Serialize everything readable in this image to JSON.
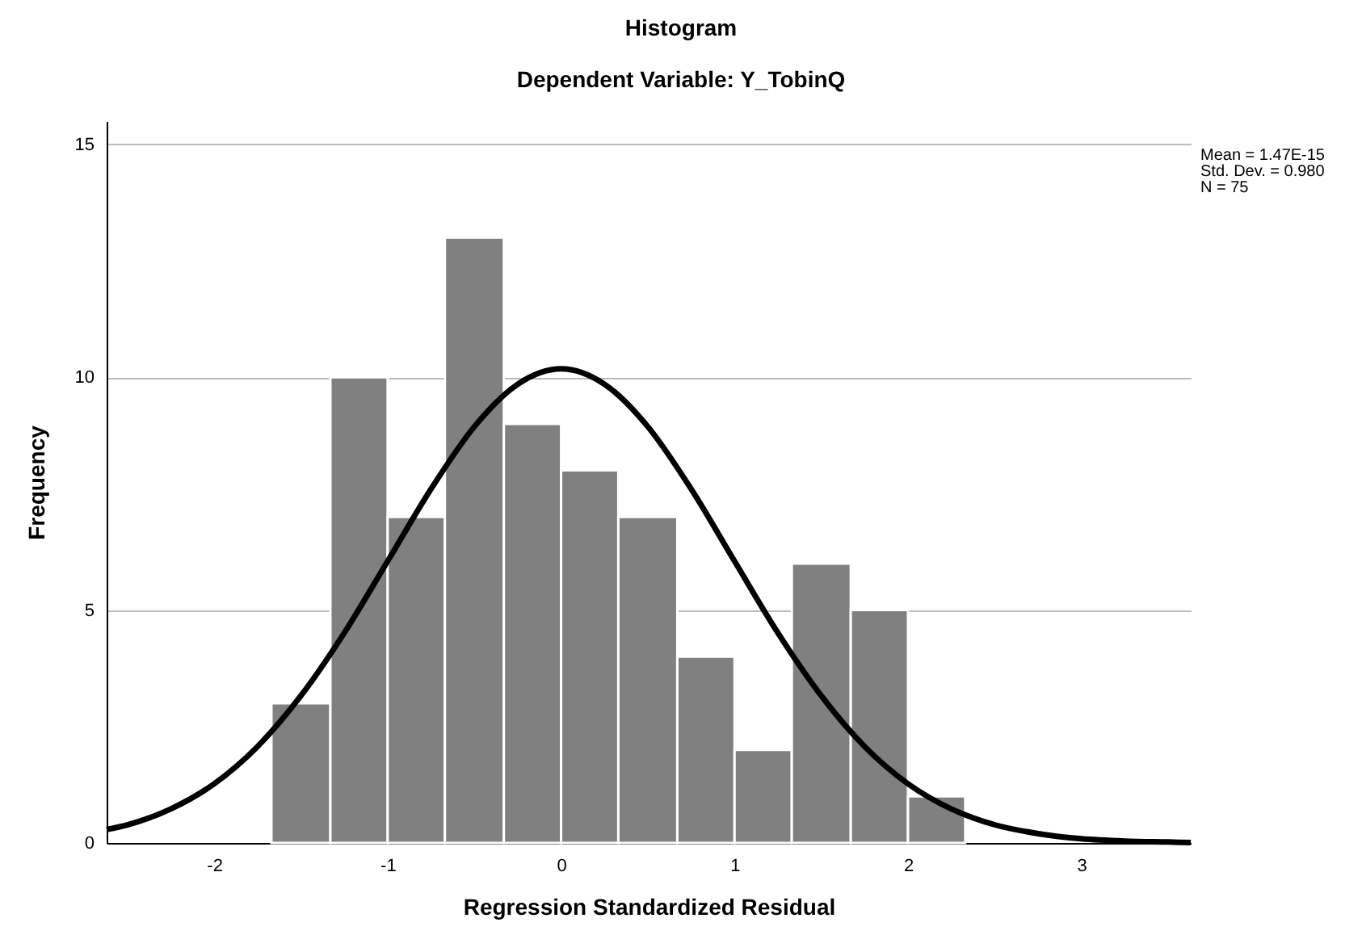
{
  "chart_data": {
    "type": "histogram",
    "title": "Histogram",
    "subtitle": "Dependent Variable: Y_TobinQ",
    "xlabel": "Regression Standardized Residual",
    "ylabel": "Frequency",
    "bins": [
      -1.67,
      -1.33,
      -1,
      -0.67,
      -0.33,
      0,
      0.33,
      0.67,
      1,
      1.33,
      1.67,
      2,
      2.33
    ],
    "values": [
      3,
      10,
      7,
      13,
      9,
      8,
      7,
      4,
      2,
      6,
      5,
      1
    ],
    "color": "#808080",
    "series": [
      {
        "type": "line",
        "color": "#000000",
        "x": [
          -2.62,
          -2.5,
          -2.25,
          -2,
          -1.75,
          -1.5,
          -1.25,
          -1,
          -0.75,
          -0.5,
          -0.25,
          0,
          0.25,
          0.5,
          0.75,
          1,
          1.25,
          1.5,
          1.75,
          2,
          2.25,
          2.5,
          2.75,
          3,
          3.25,
          3.5,
          3.63
        ],
        "values": [
          0.29,
          0.39,
          0.73,
          1.27,
          2.07,
          3.16,
          4.51,
          6.05,
          7.6,
          8.94,
          9.85,
          10.18,
          9.85,
          8.94,
          7.6,
          6.05,
          4.51,
          3.16,
          2.07,
          1.27,
          0.73,
          0.39,
          0.2,
          0.09,
          0.04,
          0.02,
          0.01
        ]
      }
    ],
    "xlim": [
      -2.62,
      3.63
    ],
    "xticks": [
      -2,
      -1,
      0,
      1,
      2,
      3
    ],
    "ylim": [
      0,
      15.5
    ],
    "yticks": [
      0,
      5,
      10,
      15
    ],
    "grid": "y",
    "annotations": [
      "Mean = 1.47E-15",
      "Std. Dev. = 0.980",
      "N = 75"
    ]
  }
}
